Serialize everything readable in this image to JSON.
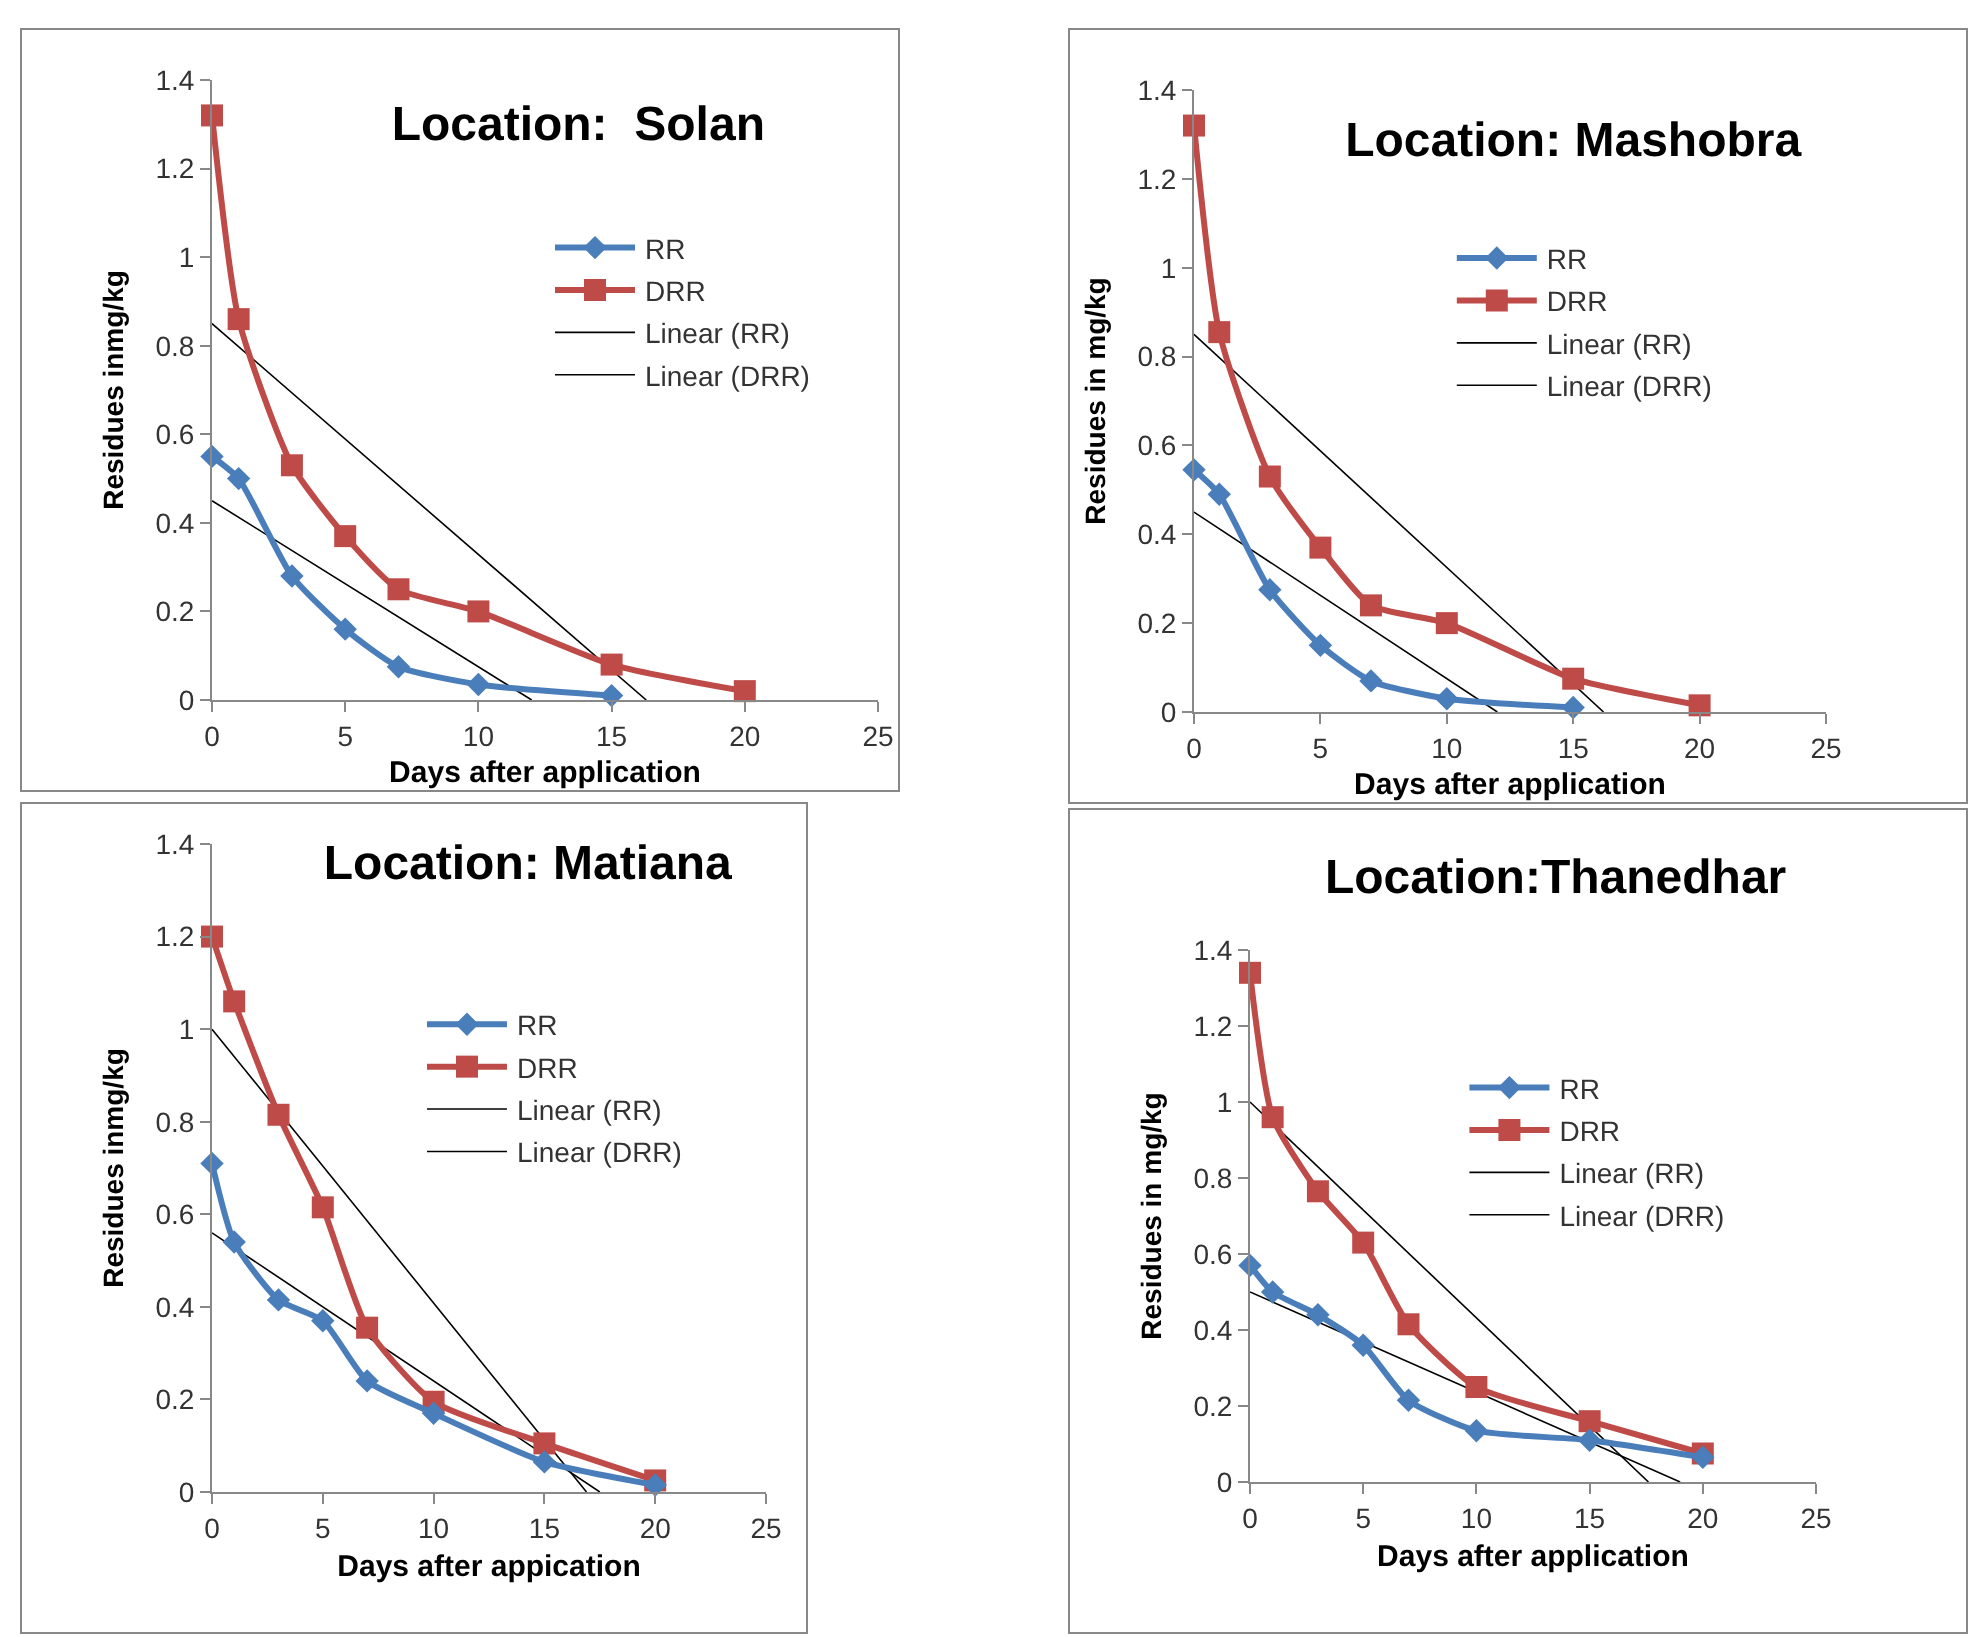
{
  "chart_data": [
    {
      "type": "line",
      "title": "Location:  Solan",
      "xlabel": "Days after application",
      "ylabel": "Residues inmg/kg",
      "xlim": [
        0,
        25
      ],
      "xticks": [
        0,
        5,
        10,
        15,
        20,
        25
      ],
      "ylim": [
        0,
        1.4
      ],
      "yticks": [
        0,
        0.2,
        0.4,
        0.6,
        0.8,
        1,
        1.2,
        1.4
      ],
      "grid": false,
      "legend": "right",
      "line_style": "solid",
      "series": [
        {
          "name": "RR",
          "color": "#4a7ebb",
          "marker": "diamond",
          "x": [
            0,
            1,
            3,
            5,
            7,
            10,
            15
          ],
          "values": [
            0.55,
            0.5,
            0.28,
            0.16,
            0.075,
            0.035,
            0.01
          ]
        },
        {
          "name": "DRR",
          "color": "#be4b48",
          "marker": "square",
          "x": [
            0,
            1,
            3,
            5,
            7,
            10,
            15,
            20
          ],
          "values": [
            1.32,
            0.86,
            0.53,
            0.37,
            0.25,
            0.2,
            0.08,
            0.02
          ]
        },
        {
          "name": "Linear (RR)",
          "color": "#000000",
          "marker": "none",
          "x": [
            0,
            12
          ],
          "values": [
            0.45,
            0
          ]
        },
        {
          "name": "Linear (DRR)",
          "color": "#000000",
          "marker": "none",
          "x": [
            0,
            16.3
          ],
          "values": [
            0.85,
            0
          ]
        }
      ]
    },
    {
      "type": "line",
      "title": "Location: Mashobra",
      "xlabel": "Days after application",
      "ylabel": "Residues in mg/kg",
      "xlim": [
        0,
        25
      ],
      "xticks": [
        0,
        5,
        10,
        15,
        20,
        25
      ],
      "ylim": [
        0,
        1.4
      ],
      "yticks": [
        0,
        0.2,
        0.4,
        0.6,
        0.8,
        1,
        1.2,
        1.4
      ],
      "grid": false,
      "legend": "right",
      "line_style": "solid",
      "series": [
        {
          "name": "RR",
          "color": "#4a7ebb",
          "marker": "diamond",
          "x": [
            0,
            1,
            3,
            5,
            7,
            10,
            15
          ],
          "values": [
            0.545,
            0.49,
            0.275,
            0.15,
            0.07,
            0.03,
            0.01
          ]
        },
        {
          "name": "DRR",
          "color": "#be4b48",
          "marker": "square",
          "x": [
            0,
            1,
            3,
            5,
            7,
            10,
            15,
            20
          ],
          "values": [
            1.32,
            0.855,
            0.53,
            0.37,
            0.24,
            0.2,
            0.075,
            0.015
          ]
        },
        {
          "name": "Linear (RR)",
          "color": "#000000",
          "marker": "none",
          "x": [
            0,
            12
          ],
          "values": [
            0.45,
            0
          ]
        },
        {
          "name": "Linear (DRR)",
          "color": "#000000",
          "marker": "none",
          "x": [
            0,
            16.2
          ],
          "values": [
            0.85,
            0
          ]
        }
      ]
    },
    {
      "type": "line",
      "title": "Location: Matiana",
      "xlabel": "Days after appication",
      "ylabel": "Residues inmg/kg",
      "xlim": [
        0,
        25
      ],
      "xticks": [
        0,
        5,
        10,
        15,
        20,
        25
      ],
      "ylim": [
        0,
        1.4
      ],
      "yticks": [
        0,
        0.2,
        0.4,
        0.6,
        0.8,
        1,
        1.2,
        1.4
      ],
      "grid": false,
      "legend": "right",
      "line_style": "solid",
      "series": [
        {
          "name": "RR",
          "color": "#4a7ebb",
          "marker": "diamond",
          "x": [
            0,
            1,
            3,
            5,
            7,
            10,
            15,
            20
          ],
          "values": [
            0.71,
            0.54,
            0.415,
            0.37,
            0.24,
            0.17,
            0.065,
            0.015
          ]
        },
        {
          "name": "DRR",
          "color": "#be4b48",
          "marker": "square",
          "x": [
            0,
            1,
            3,
            5,
            7,
            10,
            15,
            20
          ],
          "values": [
            1.2,
            1.06,
            0.815,
            0.615,
            0.355,
            0.195,
            0.105,
            0.025
          ]
        },
        {
          "name": "Linear (RR)",
          "color": "#000000",
          "marker": "none",
          "x": [
            0,
            17.5
          ],
          "values": [
            0.56,
            0
          ]
        },
        {
          "name": "Linear (DRR)",
          "color": "#000000",
          "marker": "none",
          "x": [
            0,
            16.9
          ],
          "values": [
            1.0,
            0
          ]
        }
      ]
    },
    {
      "type": "line",
      "title": "Location:Thanedhar",
      "xlabel": "Days after application",
      "ylabel": "Residues in mg/kg",
      "xlim": [
        0,
        25
      ],
      "xticks": [
        0,
        5,
        10,
        15,
        20,
        25
      ],
      "ylim": [
        0,
        1.4
      ],
      "yticks": [
        0,
        0.2,
        0.4,
        0.6,
        0.8,
        1,
        1.2,
        1.4
      ],
      "grid": false,
      "legend": "right",
      "line_style": "solid",
      "series": [
        {
          "name": "RR",
          "color": "#4a7ebb",
          "marker": "diamond",
          "x": [
            0,
            1,
            3,
            5,
            7,
            10,
            15,
            20
          ],
          "values": [
            0.57,
            0.5,
            0.44,
            0.36,
            0.215,
            0.135,
            0.11,
            0.065
          ]
        },
        {
          "name": "DRR",
          "color": "#be4b48",
          "marker": "square",
          "x": [
            0,
            1,
            3,
            5,
            7,
            10,
            15,
            20
          ],
          "values": [
            1.34,
            0.96,
            0.765,
            0.63,
            0.415,
            0.25,
            0.16,
            0.075
          ]
        },
        {
          "name": "Linear (RR)",
          "color": "#000000",
          "marker": "none",
          "x": [
            0,
            19
          ],
          "values": [
            0.5,
            0
          ]
        },
        {
          "name": "Linear (DRR)",
          "color": "#000000",
          "marker": "none",
          "x": [
            0,
            17.6
          ],
          "values": [
            1.0,
            0
          ]
        }
      ]
    }
  ]
}
